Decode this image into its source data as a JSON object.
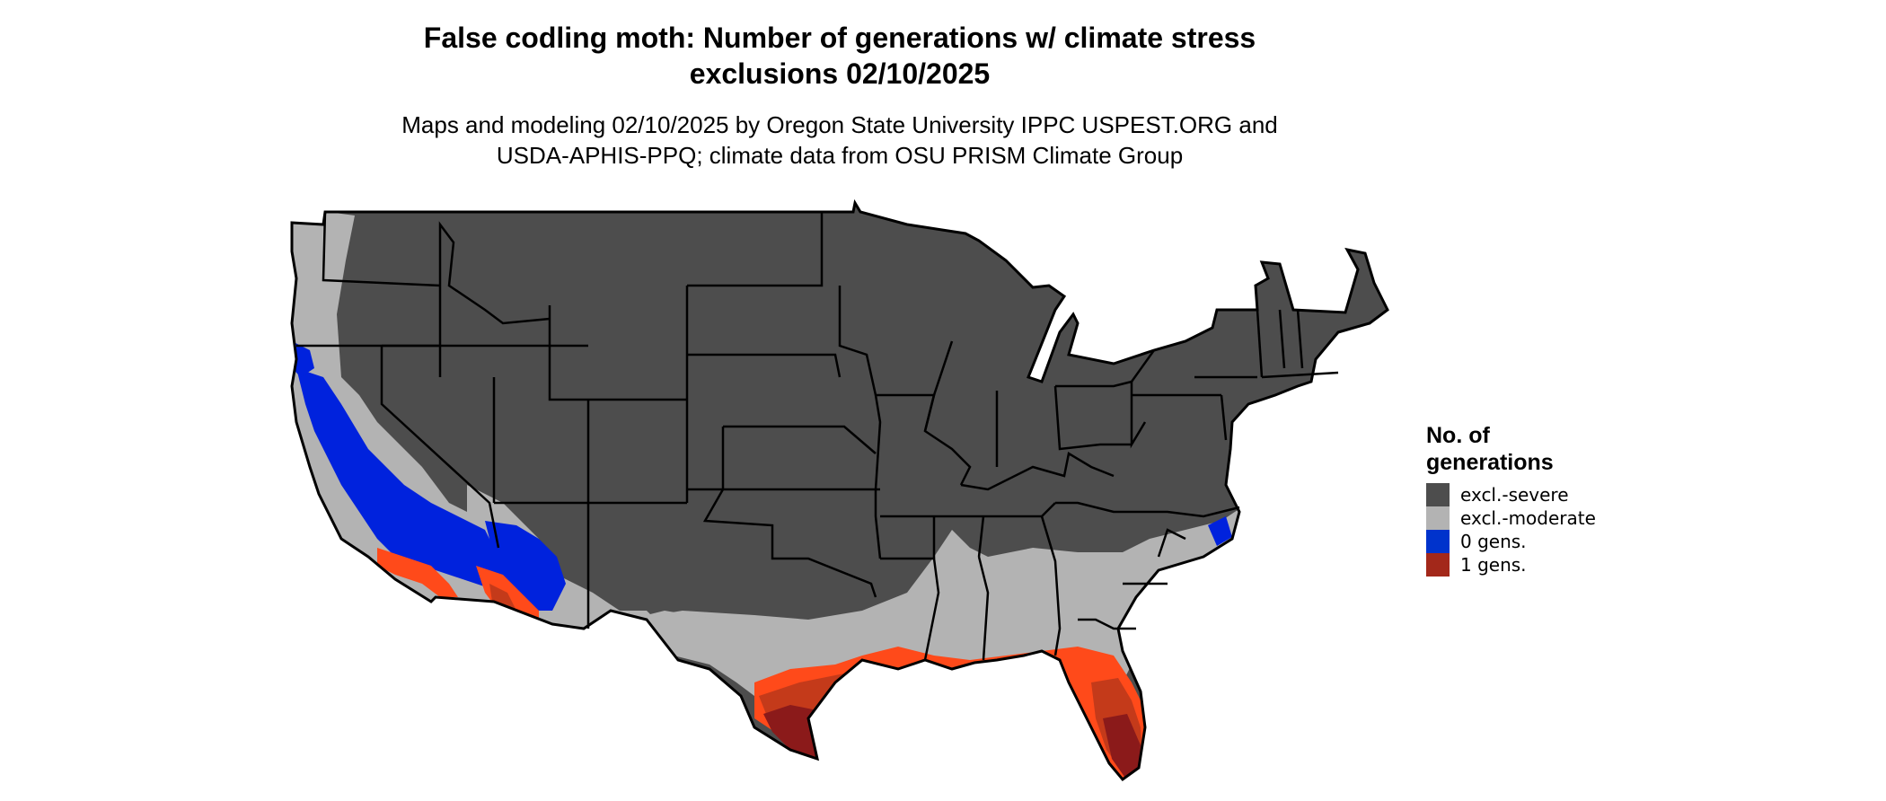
{
  "title": {
    "line1": "False codling moth: Number of generations w/ climate stress",
    "line2": "exclusions 02/10/2025"
  },
  "subtitle": {
    "line1": "Maps and modeling 02/10/2025 by Oregon State University IPPC USPEST.ORG and",
    "line2": "USDA-APHIS-PPQ; climate data from OSU PRISM Climate Group"
  },
  "legend": {
    "title_line1": "No. of",
    "title_line2": "generations",
    "items": [
      {
        "label": "excl.-severe",
        "color": "#4d4d4d"
      },
      {
        "label": "excl.-moderate",
        "color": "#b3b3b3"
      },
      {
        "label": "0 gens.",
        "color": "#0033cc"
      },
      {
        "label": "1 gens.",
        "color": "#a3281a"
      }
    ]
  },
  "colors": {
    "severe": "#4d4d4d",
    "moderate": "#b3b3b3",
    "zero": "#0022dd",
    "one_dark": "#8b1a1a",
    "one_mid": "#c43a1a",
    "one_light": "#ff4a1a",
    "border": "#000000"
  }
}
